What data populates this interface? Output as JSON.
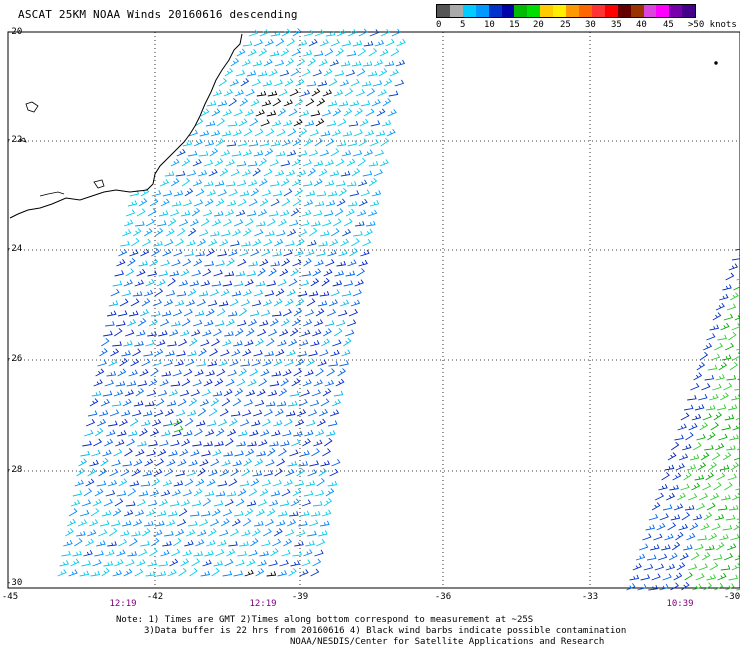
{
  "title": "ASCAT 25KM NOAA Winds 20160616 descending",
  "colorbar": {
    "colors": [
      "#555555",
      "#aaaaaa",
      "#00ccff",
      "#0099ff",
      "#0033cc",
      "#0000aa",
      "#00bb00",
      "#00dd00",
      "#ffcc00",
      "#ffee00",
      "#ff9900",
      "#ff6600",
      "#ff3333",
      "#ff0000",
      "#660000",
      "#993300",
      "#dd44dd",
      "#ff00ff",
      "#7700aa",
      "#440088"
    ],
    "labels": [
      "0",
      "5",
      "10",
      "15",
      "20",
      "25",
      "30",
      "35",
      "40",
      "45",
      ">50 knots"
    ]
  },
  "y_ticks": [
    "-20",
    "-22",
    "-24",
    "-26",
    "-28",
    "-30"
  ],
  "x_ticks": [
    "-45",
    "-42",
    "-39",
    "-36",
    "-33",
    "-30"
  ],
  "time_labels": [
    "12:19",
    "12:19",
    "10:39"
  ],
  "notes": [
    "Note: 1) Times are GMT 2)Times along bottom correspond to measurement at ~25S",
    "3)Data buffer is 22 hrs from 20160616 4) Black wind barbs indicate possible contamination",
    "NOAA/NESDIS/Center for Satellite Applications and Research"
  ]
}
